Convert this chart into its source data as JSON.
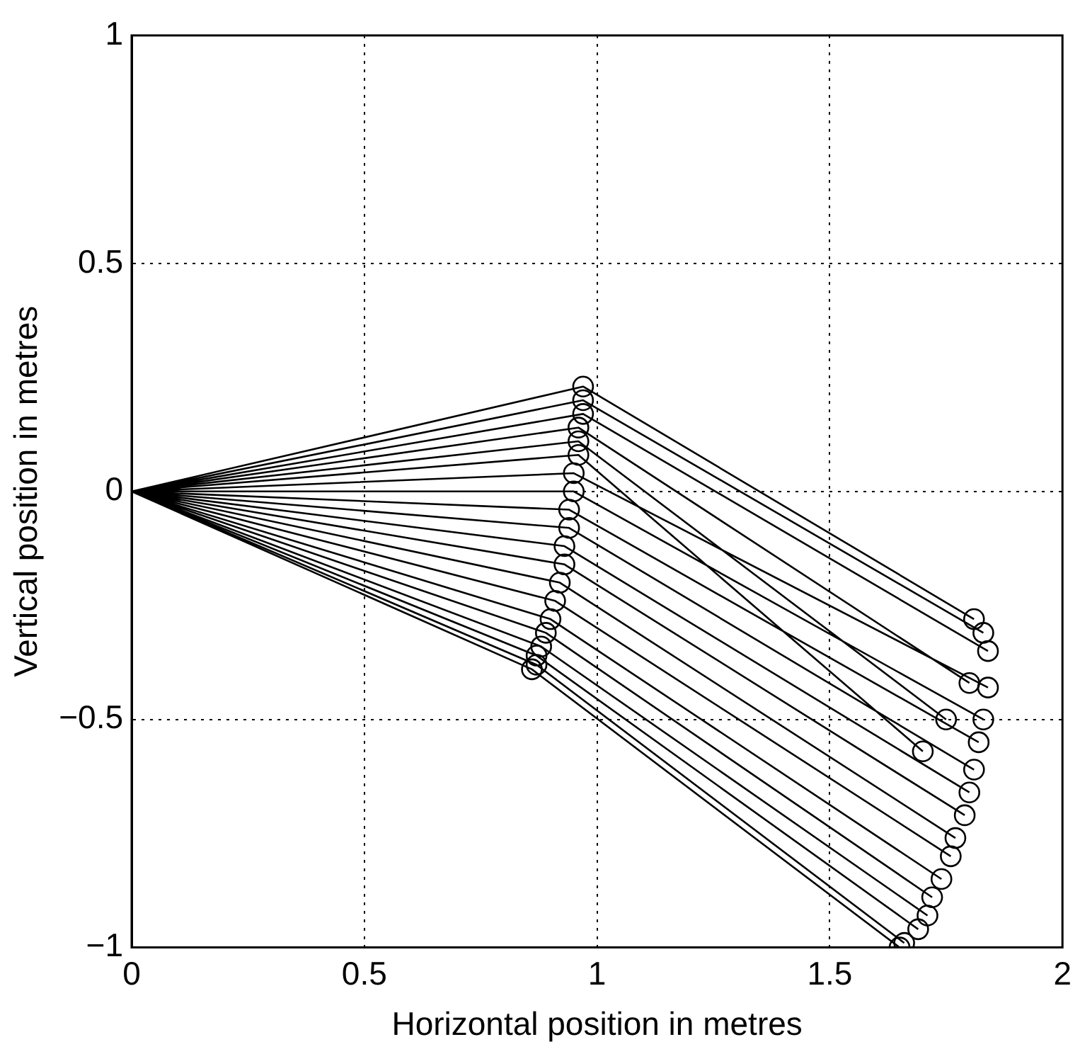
{
  "chart_data": {
    "type": "line",
    "xlabel": "Horizontal position in metres",
    "ylabel": "Vertical position in metres",
    "xlim": [
      0,
      2
    ],
    "xticks": [
      0,
      0.5,
      1,
      1.5,
      2
    ],
    "ylim": [
      -1,
      1
    ],
    "yticks": [
      {
        "value": -1,
        "label": "−1"
      },
      {
        "value": -0.5,
        "label": "−0.5"
      },
      0,
      0.5,
      1
    ],
    "grid": true,
    "legend": false,
    "series": [
      {
        "marker": "none",
        "color": "#000000",
        "x": [
          0,
          0.97,
          1.81,
          null,
          0,
          0.97,
          1.83,
          null,
          0,
          0.97,
          1.84,
          null,
          0,
          0.96,
          1.8,
          null,
          0,
          0.96,
          1.75,
          null,
          0,
          0.96,
          1.7,
          null,
          0,
          0.95,
          1.84,
          null,
          0,
          0.95,
          1.83,
          null,
          0,
          0.94,
          1.82,
          null,
          0,
          0.94,
          1.81,
          null,
          0,
          0.93,
          1.8,
          null,
          0,
          0.93,
          1.79,
          null,
          0,
          0.92,
          1.77,
          null,
          0,
          0.91,
          1.76,
          null,
          0,
          0.9,
          1.74,
          null,
          0,
          0.89,
          1.72,
          null,
          0,
          0.88,
          1.71,
          null,
          0,
          0.87,
          1.69,
          null,
          0,
          0.87,
          1.66,
          null,
          0,
          0.86,
          1.65
        ],
        "values": [
          0,
          0.23,
          -0.28,
          null,
          0,
          0.2,
          -0.31,
          null,
          0,
          0.17,
          -0.35,
          null,
          0,
          0.14,
          -0.42,
          null,
          0,
          0.11,
          -0.5,
          null,
          0,
          0.08,
          -0.57,
          null,
          0,
          0.04,
          -0.43,
          null,
          0,
          0.0,
          -0.5,
          null,
          0,
          -0.04,
          -0.55,
          null,
          0,
          -0.08,
          -0.61,
          null,
          0,
          -0.12,
          -0.66,
          null,
          0,
          -0.16,
          -0.71,
          null,
          0,
          -0.2,
          -0.76,
          null,
          0,
          -0.24,
          -0.8,
          null,
          0,
          -0.28,
          -0.85,
          null,
          0,
          -0.31,
          -0.89,
          null,
          0,
          -0.34,
          -0.93,
          null,
          0,
          -0.36,
          -0.96,
          null,
          0,
          -0.38,
          -0.99,
          null,
          0,
          -0.39,
          -1.0
        ]
      },
      {
        "type": "scatter",
        "marker": "circle",
        "color": "#000000",
        "x": [
          0.97,
          0.97,
          0.97,
          0.96,
          0.96,
          0.96,
          0.95,
          0.95,
          0.94,
          0.94,
          0.93,
          0.93,
          0.92,
          0.91,
          0.9,
          0.89,
          0.88,
          0.87,
          0.87,
          0.86,
          1.81,
          1.83,
          1.84,
          1.8,
          1.75,
          1.7,
          1.84,
          1.83,
          1.82,
          1.81,
          1.8,
          1.79,
          1.77,
          1.76,
          1.74,
          1.72,
          1.71,
          1.69,
          1.66,
          1.65
        ],
        "values": [
          0.23,
          0.2,
          0.17,
          0.14,
          0.11,
          0.08,
          0.04,
          0.0,
          -0.04,
          -0.08,
          -0.12,
          -0.16,
          -0.2,
          -0.24,
          -0.28,
          -0.31,
          -0.34,
          -0.36,
          -0.38,
          -0.39,
          -0.28,
          -0.31,
          -0.35,
          -0.42,
          -0.5,
          -0.57,
          -0.43,
          -0.5,
          -0.55,
          -0.61,
          -0.66,
          -0.71,
          -0.76,
          -0.8,
          -0.85,
          -0.89,
          -0.93,
          -0.96,
          -0.99,
          -1.0
        ]
      }
    ]
  }
}
